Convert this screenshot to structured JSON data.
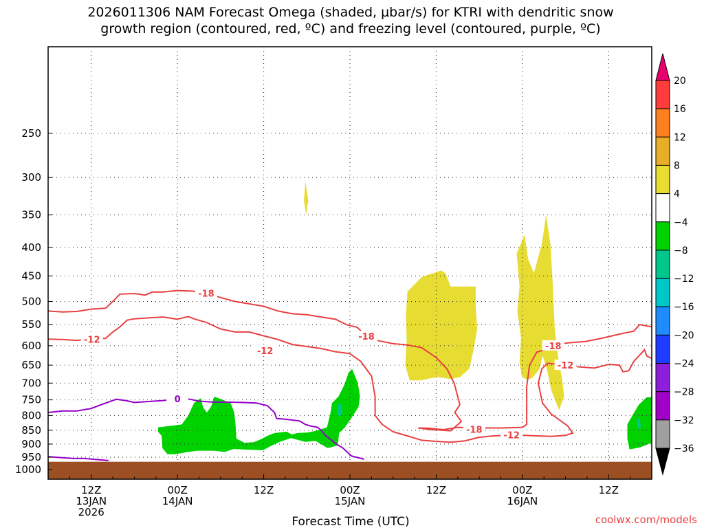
{
  "title_line1": "2026011306 NAM Forecast Omega (shaded, µbar/s) for KTRI with dendritic snow",
  "title_line2": "growth region (contoured, red, ºC) and freezing level (contoured, purple, ºC)",
  "credit": "coolwx.com/models",
  "chart_data": {
    "type": "area",
    "title": "2026011306 NAM Forecast Omega (shaded, µbar/s) for KTRI with dendritic snow growth region (contoured, red, ºC) and freezing level (contoured, purple, ºC)",
    "xlabel": "Forecast Time (UTC)",
    "ylabel": "",
    "x_ticks": [
      {
        "hour": 6,
        "line1": "12Z",
        "line2": "13JAN",
        "line3": "2026"
      },
      {
        "hour": 18,
        "line1": "00Z",
        "line2": "14JAN",
        "line3": ""
      },
      {
        "hour": 30,
        "line1": "12Z",
        "line2": "",
        "line3": ""
      },
      {
        "hour": 42,
        "line1": "00Z",
        "line2": "15JAN",
        "line3": ""
      },
      {
        "hour": 54,
        "line1": "12Z",
        "line2": "",
        "line3": ""
      },
      {
        "hour": 66,
        "line1": "00Z",
        "line2": "16JAN",
        "line3": ""
      },
      {
        "hour": 78,
        "line1": "12Z",
        "line2": "",
        "line3": ""
      }
    ],
    "x_range_hours": [
      0,
      84
    ],
    "y_ticks_hpa": [
      250,
      300,
      350,
      400,
      450,
      500,
      550,
      600,
      650,
      700,
      750,
      800,
      850,
      900,
      950,
      1000
    ],
    "y_scale": "log-pressure",
    "grid": true,
    "colorbar": {
      "labels": [
        "20",
        "16",
        "12",
        "8",
        "4",
        "−4",
        "−8",
        "−12",
        "−16",
        "−20",
        "−24",
        "−28",
        "−32",
        "−36"
      ],
      "colors": [
        "#e8006e",
        "#ff3c3c",
        "#ff7f1e",
        "#e8ae28",
        "#e6dc32",
        "#ffffff",
        "#00d200",
        "#00c88c",
        "#00c8c8",
        "#1e8cff",
        "#1e3cff",
        "#8c1edc",
        "#a000c8",
        "#a0a0a0",
        "#000000"
      ]
    },
    "omega_regions": [
      {
        "value": 4,
        "color": "#e6dc32",
        "points": [
          [
            35.8,
            305
          ],
          [
            36.2,
            330
          ],
          [
            35.9,
            350
          ],
          [
            35.6,
            330
          ]
        ]
      },
      {
        "value": 4,
        "color": "#e6dc32",
        "points": [
          [
            50,
            480
          ],
          [
            52,
            452
          ],
          [
            54.7,
            440
          ],
          [
            55.3,
            445
          ],
          [
            56,
            470
          ],
          [
            59.5,
            470
          ],
          [
            59.5,
            510
          ],
          [
            59.7,
            560
          ],
          [
            59.2,
            610
          ],
          [
            58.6,
            660
          ],
          [
            57.3,
            683
          ],
          [
            56,
            688
          ],
          [
            54.3,
            683
          ],
          [
            53.2,
            686
          ],
          [
            51.9,
            692
          ],
          [
            50.3,
            692
          ],
          [
            49.7,
            650
          ],
          [
            49.9,
            590
          ],
          [
            49.8,
            530
          ]
        ]
      },
      {
        "value": 4,
        "color": "#e6dc32",
        "points": [
          [
            65.2,
            410
          ],
          [
            66.3,
            380
          ],
          [
            66.8,
            420
          ],
          [
            67.6,
            445
          ],
          [
            68.7,
            395
          ],
          [
            69.3,
            350
          ],
          [
            69.9,
            395
          ],
          [
            70.2,
            460
          ],
          [
            70.5,
            560
          ],
          [
            70.9,
            620
          ],
          [
            71.6,
            700
          ],
          [
            71.8,
            740
          ],
          [
            71.1,
            782
          ],
          [
            70,
            720
          ],
          [
            69.4,
            660
          ],
          [
            68.8,
            625
          ],
          [
            68.4,
            660
          ],
          [
            67.4,
            685
          ],
          [
            66.6,
            690
          ],
          [
            65.9,
            680
          ],
          [
            65.6,
            640
          ],
          [
            65.8,
            580
          ],
          [
            65.3,
            520
          ],
          [
            65.6,
            470
          ]
        ]
      },
      {
        "value": -4,
        "color": "#00d200",
        "points": [
          [
            15.3,
            840
          ],
          [
            17,
            835
          ],
          [
            18.6,
            830
          ],
          [
            19.5,
            800
          ],
          [
            20.3,
            760
          ],
          [
            21.2,
            745
          ],
          [
            21.6,
            775
          ],
          [
            22.1,
            790
          ],
          [
            22.7,
            770
          ],
          [
            23.1,
            740
          ],
          [
            24.1,
            748
          ],
          [
            25.4,
            760
          ],
          [
            25.9,
            790
          ],
          [
            26.1,
            835
          ],
          [
            26.2,
            880
          ],
          [
            27.3,
            895
          ],
          [
            28.6,
            893
          ],
          [
            29.8,
            880
          ],
          [
            30.5,
            870
          ],
          [
            31.5,
            860
          ],
          [
            33.2,
            855
          ],
          [
            33.9,
            865
          ],
          [
            34.7,
            860
          ],
          [
            36.1,
            858
          ],
          [
            37.3,
            852
          ],
          [
            38.8,
            840
          ],
          [
            39.3,
            790
          ],
          [
            39.5,
            760
          ],
          [
            40.4,
            740
          ],
          [
            41.2,
            706
          ],
          [
            41.8,
            671
          ],
          [
            42.3,
            660
          ],
          [
            43.1,
            700
          ],
          [
            43.4,
            740
          ],
          [
            43.2,
            772
          ],
          [
            42.3,
            805
          ],
          [
            41.3,
            840
          ],
          [
            40.5,
            860
          ],
          [
            40.3,
            905
          ],
          [
            38.9,
            915
          ],
          [
            37.2,
            888
          ],
          [
            35.8,
            892
          ],
          [
            33.8,
            878
          ],
          [
            32.2,
            892
          ],
          [
            31,
            907
          ],
          [
            29.9,
            923
          ],
          [
            27.1,
            920
          ],
          [
            25.8,
            918
          ],
          [
            24.6,
            930
          ],
          [
            23.1,
            925
          ],
          [
            20.8,
            925
          ],
          [
            19.4,
            930
          ],
          [
            17.8,
            938
          ],
          [
            16.6,
            938
          ],
          [
            15.9,
            915
          ],
          [
            15.8,
            870
          ],
          [
            15.3,
            855
          ]
        ]
      },
      {
        "value": -8,
        "color": "#00c88c",
        "points": [
          [
            40.3,
            762
          ],
          [
            40.9,
            766
          ],
          [
            40.9,
            800
          ],
          [
            40.3,
            800
          ]
        ]
      },
      {
        "value": -4,
        "color": "#00d200",
        "points": [
          [
            80.6,
            830
          ],
          [
            81.3,
            800
          ],
          [
            82.2,
            765
          ],
          [
            83.3,
            742
          ],
          [
            84,
            742
          ],
          [
            84,
            895
          ],
          [
            82.4,
            912
          ],
          [
            80.9,
            920
          ],
          [
            80.6,
            880
          ]
        ]
      },
      {
        "value": -8,
        "color": "#00c88c",
        "points": [
          [
            81.9,
            815
          ],
          [
            82.3,
            808
          ],
          [
            82.5,
            840
          ],
          [
            82.1,
            845
          ]
        ]
      }
    ],
    "dgz_contours": [
      {
        "label": "-18",
        "points": [
          [
            0,
            520
          ],
          [
            2,
            522
          ],
          [
            4,
            521
          ],
          [
            6,
            516
          ],
          [
            8,
            514
          ],
          [
            9,
            500
          ],
          [
            10,
            485
          ],
          [
            12,
            484
          ],
          [
            13.5,
            487
          ],
          [
            14.5,
            481
          ],
          [
            16,
            481
          ],
          [
            18,
            478
          ],
          [
            20,
            479
          ],
          [
            22,
            483
          ],
          [
            24,
            492
          ],
          [
            26,
            500
          ],
          [
            28,
            505
          ],
          [
            30,
            510
          ],
          [
            32,
            520
          ],
          [
            34,
            526
          ],
          [
            36,
            528
          ],
          [
            38,
            533
          ],
          [
            40,
            538
          ],
          [
            41.5,
            550
          ],
          [
            43,
            556
          ],
          [
            44.3,
            577
          ],
          [
            46,
            588
          ],
          [
            48,
            595
          ],
          [
            50,
            598
          ],
          [
            52,
            605
          ],
          [
            54,
            630
          ],
          [
            55.5,
            660
          ],
          [
            56.5,
            700
          ],
          [
            57.3,
            765
          ],
          [
            56.6,
            790
          ],
          [
            57.5,
            820
          ],
          [
            56,
            852
          ],
          [
            53,
            847
          ],
          [
            51.5,
            842
          ],
          [
            53,
            843
          ],
          [
            55,
            848
          ],
          [
            57,
            840
          ],
          [
            60,
            842
          ],
          [
            63,
            842
          ],
          [
            66,
            840
          ],
          [
            66.6,
            830
          ],
          [
            66.6,
            760
          ],
          [
            66.6,
            710
          ],
          [
            67,
            650
          ],
          [
            68,
            616
          ],
          [
            69.5,
            608
          ],
          [
            70.3,
            600
          ]
        ]
      },
      {
        "label": "-12",
        "points": [
          [
            0,
            584
          ],
          [
            2,
            585
          ],
          [
            4,
            587
          ],
          [
            6,
            584
          ],
          [
            8,
            582
          ],
          [
            9,
            567
          ],
          [
            10,
            555
          ],
          [
            11,
            540
          ],
          [
            12,
            537
          ],
          [
            14,
            535
          ],
          [
            16,
            533
          ],
          [
            18,
            538
          ],
          [
            19.5,
            532
          ],
          [
            20.5,
            538
          ],
          [
            22,
            545
          ],
          [
            24,
            560
          ],
          [
            26,
            567
          ],
          [
            28,
            567
          ],
          [
            30,
            576
          ],
          [
            32,
            585
          ],
          [
            34,
            597
          ],
          [
            36,
            602
          ],
          [
            38,
            607
          ],
          [
            40,
            615
          ],
          [
            42,
            620
          ],
          [
            43.5,
            640
          ],
          [
            45,
            680
          ],
          [
            45.5,
            740
          ],
          [
            45.5,
            800
          ],
          [
            46.5,
            830
          ],
          [
            48,
            855
          ],
          [
            50,
            870
          ],
          [
            52,
            886
          ],
          [
            54,
            890
          ],
          [
            56,
            893
          ],
          [
            58,
            888
          ],
          [
            60,
            875
          ],
          [
            62,
            870
          ],
          [
            64,
            868
          ],
          [
            66,
            868
          ],
          [
            68,
            870
          ],
          [
            70,
            872
          ],
          [
            72,
            868
          ],
          [
            73,
            860
          ],
          [
            72.3,
            835
          ],
          [
            70,
            795
          ],
          [
            68.8,
            760
          ],
          [
            68.2,
            700
          ],
          [
            68.7,
            660
          ],
          [
            69.5,
            645
          ],
          [
            72,
            650
          ],
          [
            74,
            655
          ],
          [
            76,
            658
          ],
          [
            78,
            648
          ],
          [
            79.5,
            650
          ],
          [
            80,
            668
          ],
          [
            80.8,
            665
          ],
          [
            81.5,
            640
          ],
          [
            82.5,
            620
          ],
          [
            83,
            610
          ],
          [
            83.3,
            626
          ],
          [
            84,
            632
          ]
        ]
      },
      {
        "label": "",
        "points": [
          [
            71.4,
            595
          ],
          [
            73,
            592
          ],
          [
            74.7,
            590
          ],
          [
            77,
            582
          ],
          [
            79.5,
            572
          ],
          [
            81.5,
            565
          ],
          [
            82.3,
            550
          ],
          [
            84,
            555
          ]
        ]
      }
    ],
    "freezing_level": {
      "label": "0",
      "points": [
        [
          0,
          790
        ],
        [
          2,
          785
        ],
        [
          4,
          785
        ],
        [
          6,
          777
        ],
        [
          8,
          760
        ],
        [
          9.5,
          748
        ],
        [
          11,
          753
        ],
        [
          12,
          758
        ],
        [
          14,
          755
        ],
        [
          16,
          752
        ],
        [
          18,
          747
        ],
        [
          19.5,
          747
        ],
        [
          21,
          754
        ],
        [
          23,
          757
        ],
        [
          25,
          757
        ],
        [
          27,
          758
        ],
        [
          29,
          760
        ],
        [
          30.5,
          768
        ],
        [
          31.5,
          790
        ],
        [
          31.8,
          810
        ],
        [
          33,
          812
        ],
        [
          35,
          818
        ],
        [
          35.8,
          830
        ],
        [
          36.5,
          835
        ],
        [
          37.5,
          840
        ],
        [
          38,
          850
        ],
        [
          38.5,
          866
        ],
        [
          40,
          898
        ],
        [
          41,
          914
        ],
        [
          42.2,
          945
        ],
        [
          44,
          958
        ]
      ],
      "secondary": [
        [
          0,
          948
        ],
        [
          3.5,
          955
        ],
        [
          5,
          955
        ],
        [
          8.4,
          963
        ]
      ]
    },
    "terrain_hpa": 968
  }
}
